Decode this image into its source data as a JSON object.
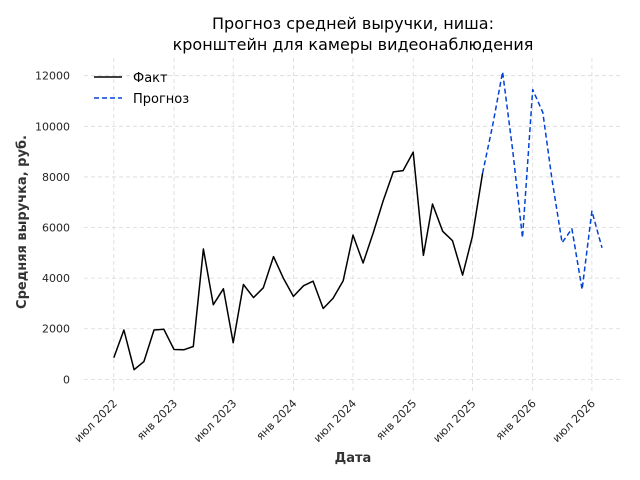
{
  "chart_data": {
    "type": "line",
    "title_lines": [
      "Прогноз средней выручки, ниша:",
      "кронштейн для камеры видеонаблюдения"
    ],
    "xlabel": "Дата",
    "ylabel": "Средняя выручка, руб.",
    "x_axis_type": "date",
    "x_range": [
      "2022-04-01",
      "2026-10-01"
    ],
    "ylim": [
      -500,
      12700
    ],
    "grid": true,
    "legend_position": "top-left",
    "x_ticks": [
      {
        "date": "2022-07-01",
        "label": "июл 2022"
      },
      {
        "date": "2023-01-01",
        "label": "янв 2023"
      },
      {
        "date": "2023-07-01",
        "label": "июл 2023"
      },
      {
        "date": "2024-01-01",
        "label": "янв 2024"
      },
      {
        "date": "2024-07-01",
        "label": "июл 2024"
      },
      {
        "date": "2025-01-01",
        "label": "янв 2025"
      },
      {
        "date": "2025-07-01",
        "label": "июл 2025"
      },
      {
        "date": "2026-01-01",
        "label": "янв 2026"
      },
      {
        "date": "2026-07-01",
        "label": "июл 2026"
      }
    ],
    "y_ticks": [
      {
        "value": 0,
        "label": "0"
      },
      {
        "value": 2000,
        "label": "2000"
      },
      {
        "value": 4000,
        "label": "4000"
      },
      {
        "value": 6000,
        "label": "6000"
      },
      {
        "value": 8000,
        "label": "8000"
      },
      {
        "value": 10000,
        "label": "10000"
      },
      {
        "value": 12000,
        "label": "12000"
      }
    ],
    "series": [
      {
        "name": "Факт",
        "color": "#000000",
        "style": "solid",
        "points": [
          [
            "2022-07-01",
            850
          ],
          [
            "2022-08-01",
            1950
          ],
          [
            "2022-09-01",
            380
          ],
          [
            "2022-10-01",
            700
          ],
          [
            "2022-11-01",
            1950
          ],
          [
            "2022-12-01",
            1980
          ],
          [
            "2023-01-01",
            1180
          ],
          [
            "2023-02-01",
            1170
          ],
          [
            "2023-03-01",
            1300
          ],
          [
            "2023-04-01",
            5150
          ],
          [
            "2023-05-01",
            2950
          ],
          [
            "2023-06-01",
            3580
          ],
          [
            "2023-07-01",
            1450
          ],
          [
            "2023-08-01",
            3750
          ],
          [
            "2023-09-01",
            3230
          ],
          [
            "2023-10-01",
            3620
          ],
          [
            "2023-11-01",
            4850
          ],
          [
            "2023-12-01",
            4000
          ],
          [
            "2024-01-01",
            3280
          ],
          [
            "2024-02-01",
            3700
          ],
          [
            "2024-03-01",
            3880
          ],
          [
            "2024-04-01",
            2800
          ],
          [
            "2024-05-01",
            3200
          ],
          [
            "2024-06-01",
            3900
          ],
          [
            "2024-07-01",
            5700
          ],
          [
            "2024-08-01",
            4600
          ],
          [
            "2024-09-01",
            5800
          ],
          [
            "2024-10-01",
            7050
          ],
          [
            "2024-11-01",
            8200
          ],
          [
            "2024-12-01",
            8250
          ],
          [
            "2025-01-01",
            8980
          ],
          [
            "2025-02-01",
            4900
          ],
          [
            "2025-03-01",
            6930
          ],
          [
            "2025-04-01",
            5850
          ],
          [
            "2025-05-01",
            5480
          ],
          [
            "2025-06-01",
            4120
          ],
          [
            "2025-07-01",
            5650
          ],
          [
            "2025-08-01",
            8150
          ]
        ]
      },
      {
        "name": "Прогноз",
        "color": "#0043d6",
        "style": "dashed",
        "points": [
          [
            "2025-08-01",
            8150
          ],
          [
            "2025-09-01",
            10050
          ],
          [
            "2025-10-01",
            12150
          ],
          [
            "2025-11-01",
            9050
          ],
          [
            "2025-12-01",
            5600
          ],
          [
            "2026-01-01",
            11450
          ],
          [
            "2026-02-01",
            10550
          ],
          [
            "2026-03-01",
            7900
          ],
          [
            "2026-04-01",
            5400
          ],
          [
            "2026-05-01",
            5950
          ],
          [
            "2026-06-01",
            3550
          ],
          [
            "2026-07-01",
            6650
          ],
          [
            "2026-08-01",
            5200
          ]
        ]
      }
    ]
  }
}
